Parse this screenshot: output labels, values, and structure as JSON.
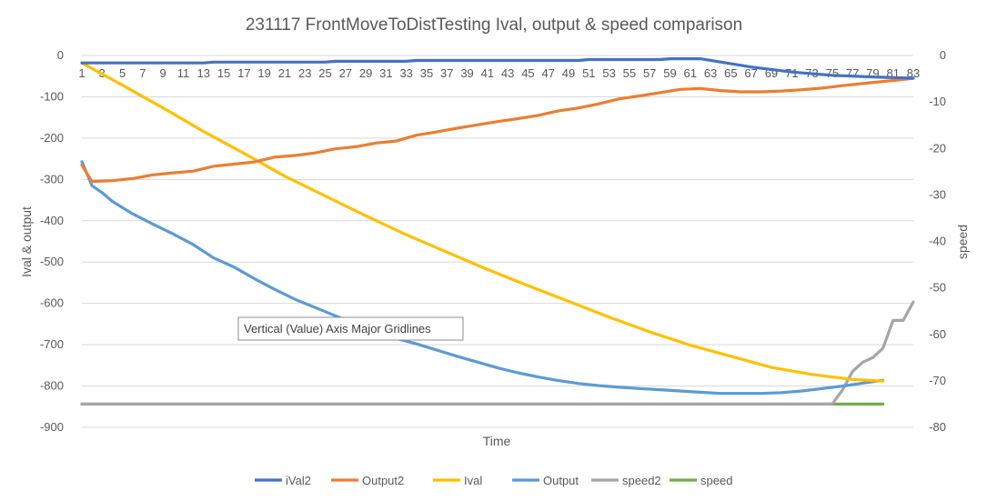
{
  "chart_data": {
    "type": "line",
    "title": "231117 FrontMoveToDistTesting Ival, output & speed comparison",
    "xlabel": "Time",
    "ylabel": "Ival & output",
    "y2label": "speed",
    "ylim": [
      -900,
      0
    ],
    "y2lim": [
      -80,
      0
    ],
    "x_tick_labels": [
      "1",
      "3",
      "5",
      "7",
      "9",
      "11",
      "13",
      "15",
      "17",
      "19",
      "21",
      "23",
      "25",
      "27",
      "29",
      "31",
      "33",
      "35",
      "37",
      "39",
      "41",
      "43",
      "45",
      "47",
      "49",
      "51",
      "53",
      "55",
      "57",
      "59",
      "61",
      "63",
      "65",
      "67",
      "69",
      "71",
      "73",
      "75",
      "77",
      "79",
      "81",
      "83"
    ],
    "y_ticks": [
      "0",
      "-100",
      "-200",
      "-300",
      "-400",
      "-500",
      "-600",
      "-700",
      "-800",
      "-900"
    ],
    "y2_ticks": [
      "0",
      "-10",
      "-20",
      "-30",
      "-40",
      "-50",
      "-60",
      "-70",
      "-80"
    ],
    "grid": true,
    "legend_position": "bottom",
    "tooltip": "Vertical (Value) Axis Major Gridlines",
    "series": [
      {
        "name": "iVal2",
        "axis": "primary",
        "color": "#4472C4",
        "x": [
          1,
          3,
          5,
          13,
          14,
          25,
          26,
          33,
          34,
          49,
          50,
          51,
          58,
          59,
          62,
          67,
          71,
          75,
          79,
          83
        ],
        "values": [
          -18,
          -18,
          -18,
          -18,
          -16,
          -16,
          -14,
          -14,
          -12,
          -12,
          -12,
          -10,
          -10,
          -8,
          -8,
          -28,
          -40,
          -48,
          -52,
          -55
        ]
      },
      {
        "name": "Output2",
        "axis": "primary",
        "color": "#ED7D31",
        "x": [
          1,
          2,
          4,
          6,
          8,
          10,
          12,
          14,
          16,
          18,
          20,
          22,
          24,
          26,
          28,
          30,
          32,
          34,
          36,
          38,
          40,
          42,
          44,
          46,
          48,
          50,
          52,
          54,
          56,
          58,
          60,
          62,
          64,
          66,
          68,
          70,
          72,
          74,
          76,
          78,
          80,
          82,
          83
        ],
        "values": [
          -265,
          -305,
          -303,
          -298,
          -289,
          -284,
          -280,
          -268,
          -263,
          -258,
          -246,
          -242,
          -236,
          -226,
          -221,
          -212,
          -207,
          -193,
          -185,
          -176,
          -168,
          -160,
          -153,
          -145,
          -134,
          -127,
          -117,
          -105,
          -98,
          -90,
          -82,
          -80,
          -85,
          -88,
          -88,
          -86,
          -83,
          -79,
          -73,
          -68,
          -63,
          -58,
          -55
        ]
      },
      {
        "name": "Ival",
        "axis": "primary",
        "color": "#FFC000",
        "x": [
          1,
          5,
          9,
          13,
          17,
          21,
          25,
          29,
          33,
          37,
          41,
          45,
          49,
          53,
          57,
          61,
          65,
          69,
          73,
          77,
          80
        ],
        "values": [
          -18,
          -72,
          -127,
          -184,
          -237,
          -292,
          -340,
          -388,
          -434,
          -476,
          -518,
          -557,
          -595,
          -633,
          -669,
          -701,
          -728,
          -755,
          -772,
          -784,
          -788
        ]
      },
      {
        "name": "Output",
        "axis": "primary",
        "color": "#5B9BD5",
        "x": [
          1,
          2,
          3,
          4,
          6,
          8,
          10,
          12,
          14,
          16,
          18,
          20,
          22,
          24,
          26,
          28,
          30,
          32,
          34,
          36,
          38,
          40,
          42,
          44,
          46,
          48,
          50,
          52,
          54,
          56,
          58,
          60,
          62,
          64,
          66,
          68,
          70,
          72,
          74,
          76,
          78,
          80
        ],
        "values": [
          -257,
          -315,
          -332,
          -353,
          -383,
          -408,
          -432,
          -458,
          -490,
          -512,
          -540,
          -566,
          -590,
          -610,
          -630,
          -650,
          -668,
          -685,
          -698,
          -713,
          -728,
          -742,
          -756,
          -768,
          -778,
          -787,
          -794,
          -799,
          -803,
          -806,
          -809,
          -812,
          -815,
          -818,
          -818,
          -818,
          -816,
          -812,
          -806,
          -800,
          -793,
          -786
        ]
      },
      {
        "name": "speed2",
        "axis": "secondary",
        "color": "#A5A5A5",
        "x": [
          1,
          75,
          76,
          77,
          78,
          79,
          80,
          81,
          82,
          83
        ],
        "values": [
          -75,
          -75,
          -72,
          -68,
          -66,
          -65,
          -63,
          -57,
          -57,
          -53
        ]
      },
      {
        "name": "speed",
        "axis": "secondary",
        "color": "#70AD47",
        "x": [
          1,
          80
        ],
        "values": [
          -75,
          -75
        ]
      }
    ]
  }
}
